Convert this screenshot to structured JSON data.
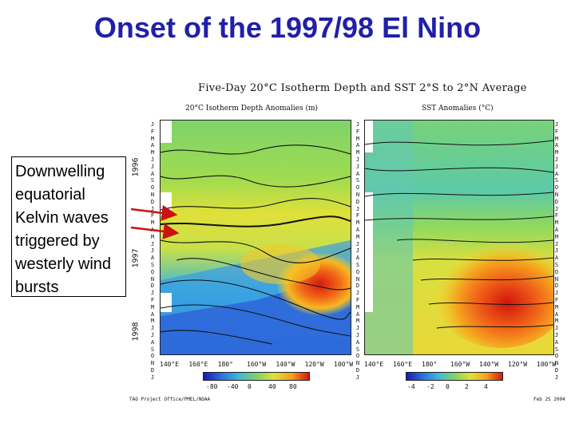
{
  "slide": {
    "title": "Onset of the 1997/98 El Nino",
    "callout": "Downwelling equatorial Kelvin waves triggered by westerly wind bursts"
  },
  "figure": {
    "title": "Five-Day 20°C Isotherm Depth and SST  2°S to 2°N Average",
    "left_panel_title": "20°C Isotherm Depth Anomalies (m)",
    "right_panel_title": "SST Anomalies (°C)",
    "years": [
      "1996",
      "1997",
      "1998"
    ],
    "x_ticks": [
      "140°E",
      "160°E",
      "180°",
      "160°W",
      "140°W",
      "120°W",
      "100°W"
    ],
    "left_colorbar_ticks": [
      "-80",
      "-40",
      "0",
      "40",
      "80"
    ],
    "right_colorbar_ticks": [
      "-4",
      "-2",
      "0",
      "2",
      "4"
    ],
    "months": [
      "J",
      "F",
      "M",
      "A",
      "M",
      "J",
      "J",
      "A",
      "S",
      "O",
      "N",
      "D",
      "J",
      "F",
      "M",
      "A",
      "M",
      "J",
      "J",
      "A",
      "S",
      "O",
      "N",
      "D",
      "J",
      "F",
      "M",
      "A",
      "M",
      "J",
      "J",
      "A",
      "S",
      "O",
      "N",
      "D",
      "J"
    ],
    "credit": "TAO Project Office/PMEL/NOAA",
    "date": "Feb 25 2004"
  },
  "colors": {
    "title": "#2020a8",
    "arrow": "#cc1111"
  }
}
